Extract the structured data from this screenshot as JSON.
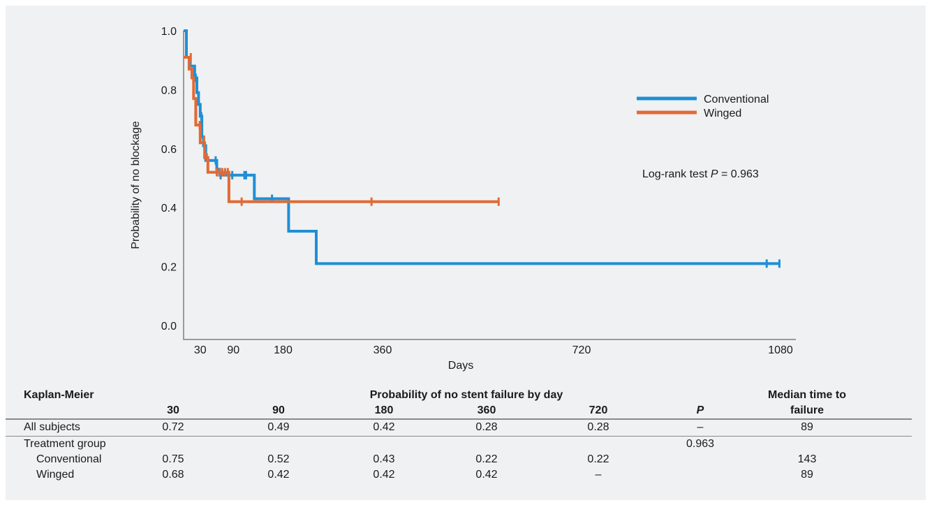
{
  "chart_data": {
    "type": "line",
    "subtype": "kaplan-meier step",
    "xlabel": "Days",
    "ylabel": "Probability of no blockage",
    "xticks": [
      30,
      90,
      180,
      360,
      720,
      1080
    ],
    "yticks": [
      "0.0",
      "0.2",
      "0.4",
      "0.6",
      "0.8",
      "1.0"
    ],
    "xlim": [
      0,
      1100
    ],
    "ylim": [
      0,
      1.0
    ],
    "grid": false,
    "legend_position": "top-right",
    "annotation": {
      "prefix": "Log-rank test ",
      "p_symbol": "P",
      "suffix": " = 0.963"
    },
    "series": [
      {
        "name": "Conventional",
        "color": "#1f8fd6",
        "steps": [
          [
            0,
            1.0
          ],
          [
            5,
            0.91
          ],
          [
            12,
            0.88
          ],
          [
            20,
            0.84
          ],
          [
            24,
            0.79
          ],
          [
            27,
            0.75
          ],
          [
            30,
            0.71
          ],
          [
            33,
            0.64
          ],
          [
            36,
            0.61
          ],
          [
            40,
            0.56
          ],
          [
            60,
            0.53
          ],
          [
            65,
            0.51
          ],
          [
            128,
            0.43
          ],
          [
            190,
            0.32
          ],
          [
            240,
            0.21
          ],
          [
            1080,
            0.21
          ]
        ],
        "censored": [
          [
            12,
            0.89
          ],
          [
            22,
            0.84
          ],
          [
            32,
            0.71
          ],
          [
            58,
            0.56
          ],
          [
            67,
            0.51
          ],
          [
            88,
            0.51
          ],
          [
            110,
            0.51
          ],
          [
            113,
            0.51
          ],
          [
            160,
            0.43
          ],
          [
            1055,
            0.21
          ],
          [
            1078,
            0.21
          ]
        ]
      },
      {
        "name": "Winged",
        "color": "#e06a35",
        "steps": [
          [
            0,
            0.91
          ],
          [
            10,
            0.87
          ],
          [
            15,
            0.84
          ],
          [
            18,
            0.77
          ],
          [
            22,
            0.68
          ],
          [
            30,
            0.62
          ],
          [
            38,
            0.57
          ],
          [
            44,
            0.52
          ],
          [
            82,
            0.42
          ],
          [
            570,
            0.42
          ]
        ],
        "censored": [
          [
            13,
            0.91
          ],
          [
            29,
            0.68
          ],
          [
            37,
            0.63
          ],
          [
            42,
            0.57
          ],
          [
            60,
            0.52
          ],
          [
            65,
            0.52
          ],
          [
            70,
            0.52
          ],
          [
            75,
            0.52
          ],
          [
            80,
            0.52
          ],
          [
            105,
            0.42
          ],
          [
            340,
            0.42
          ],
          [
            570,
            0.42
          ]
        ]
      }
    ]
  },
  "table": {
    "title": "Kaplan-Meier",
    "group_header": "Probability of no stent failure by day",
    "median_header_line1": "Median time to",
    "median_header_line2": "failure",
    "columns": [
      "30",
      "90",
      "180",
      "360",
      "720"
    ],
    "p_header": "P",
    "rows": [
      {
        "label": "All subjects",
        "values": [
          "0.72",
          "0.49",
          "0.42",
          "0.28",
          "0.28"
        ],
        "p": "–",
        "median": "89"
      },
      {
        "label": "Treatment group",
        "values": [
          "",
          "",
          "",
          "",
          ""
        ],
        "p": "0.963",
        "median": ""
      },
      {
        "label": "Conventional",
        "values": [
          "0.75",
          "0.52",
          "0.43",
          "0.22",
          "0.22"
        ],
        "p": "",
        "median": "143"
      },
      {
        "label": "Winged",
        "values": [
          "0.68",
          "0.42",
          "0.42",
          "0.42",
          "–"
        ],
        "p": "",
        "median": "89"
      }
    ]
  }
}
